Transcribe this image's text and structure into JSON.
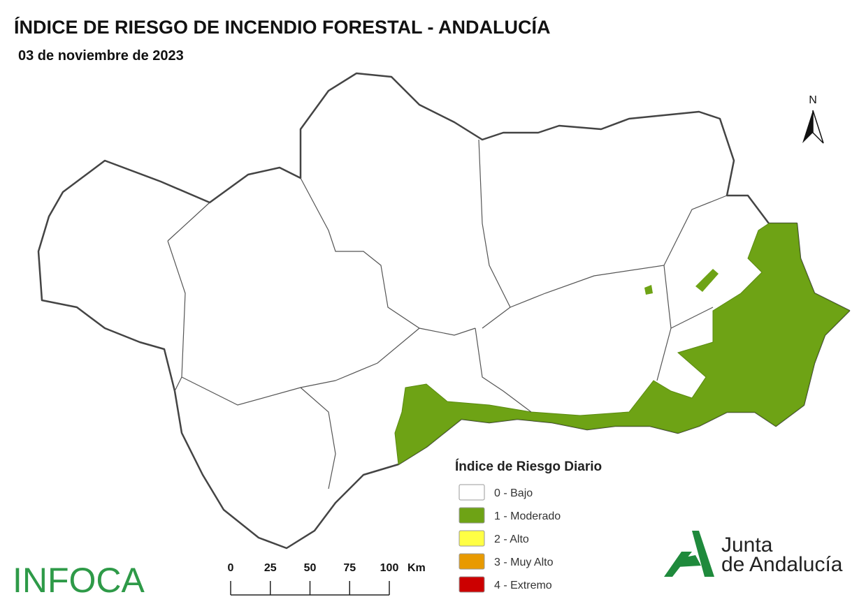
{
  "header": {
    "title": "ÍNDICE DE RIESGO DE INCENDIO FORESTAL - ANDALUCÍA",
    "date": "03 de noviembre de 2023"
  },
  "north": "N",
  "legend": {
    "title": "Índice de Riesgo Diario",
    "items": [
      {
        "label": "0 - Bajo",
        "color": "#ffffff"
      },
      {
        "label": "1 - Moderado",
        "color": "#6ea315"
      },
      {
        "label": "2 - Alto",
        "color": "#ffff44"
      },
      {
        "label": "3 - Muy Alto",
        "color": "#e89a00"
      },
      {
        "label": "4 - Extremo",
        "color": "#cc0000"
      }
    ]
  },
  "scale": {
    "ticks": [
      0,
      25,
      50,
      75,
      100
    ],
    "unit": "Km"
  },
  "logos": {
    "infoca": "INFOCA",
    "junta": [
      "Junta",
      "de Andalucía"
    ]
  }
}
